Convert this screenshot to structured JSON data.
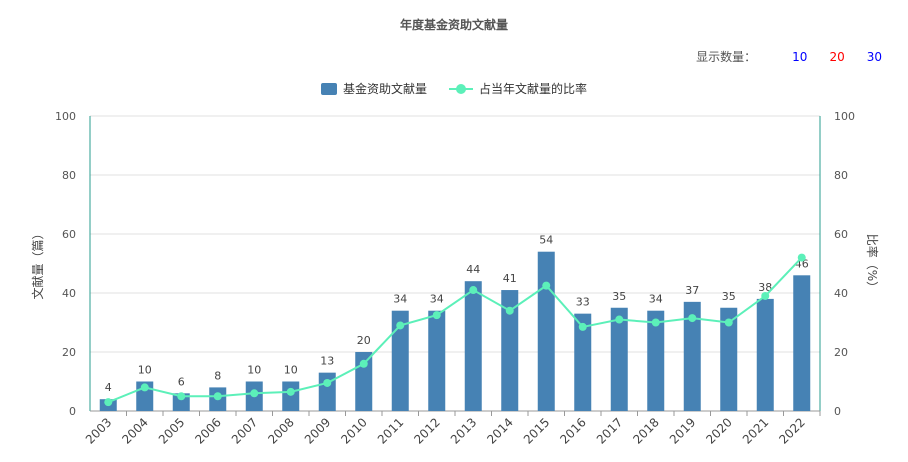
{
  "header": {
    "title": "年度基金资助文献量",
    "count_label": "显示数量：",
    "count_options": [
      {
        "label": "10",
        "color": "#0000ff"
      },
      {
        "label": "20",
        "color": "#ff0000"
      },
      {
        "label": "30",
        "color": "#0000ff"
      }
    ]
  },
  "legend": {
    "bar_label": "基金资助文献量",
    "line_label": "占当年文献量的比率"
  },
  "colors": {
    "bar": "#4682b4",
    "line": "#5cf0b9",
    "axis": "#2a9d8f",
    "grid": "#e0e0e0"
  },
  "chart_data": {
    "type": "bar",
    "title": "年度基金资助文献量",
    "categories": [
      "2003",
      "2004",
      "2005",
      "2006",
      "2007",
      "2008",
      "2009",
      "2010",
      "2011",
      "2012",
      "2013",
      "2014",
      "2015",
      "2016",
      "2017",
      "2018",
      "2019",
      "2020",
      "2021",
      "2022"
    ],
    "series": [
      {
        "name": "基金资助文献量",
        "type": "bar",
        "axis": "left",
        "values": [
          4,
          10,
          6,
          8,
          10,
          10,
          13,
          20,
          34,
          34,
          44,
          41,
          54,
          33,
          35,
          34,
          37,
          35,
          38,
          46
        ]
      },
      {
        "name": "占当年文献量的比率",
        "type": "line",
        "axis": "right",
        "values": [
          3,
          8,
          5,
          5,
          6,
          6.5,
          9.5,
          16,
          29,
          32.5,
          41,
          34,
          42.5,
          28.5,
          31,
          30,
          31.5,
          30,
          39,
          52
        ]
      }
    ],
    "ylabel_left": "文献量（篇）",
    "ylabel_right": "比率（%）",
    "ylim_left": [
      0,
      100
    ],
    "ylim_right": [
      0,
      100
    ],
    "yticks_left": [
      0,
      20,
      40,
      60,
      80,
      100
    ],
    "yticks_right": [
      0,
      20,
      40,
      60,
      80,
      100
    ],
    "grid": true,
    "legend_position": "top-center",
    "data_labels": true
  }
}
